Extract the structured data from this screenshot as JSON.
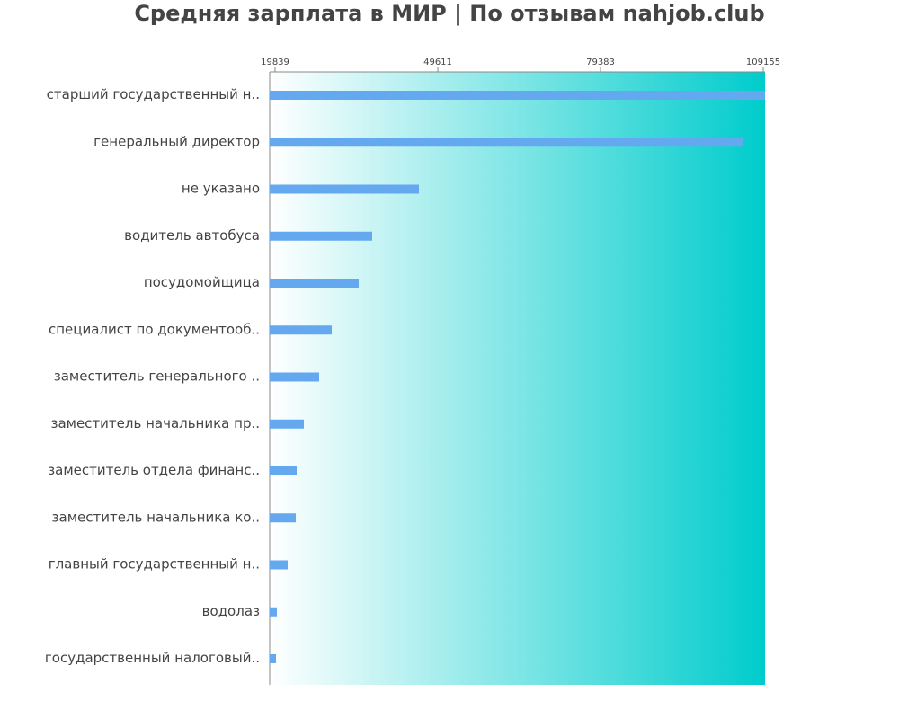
{
  "chart_data": {
    "type": "bar",
    "orientation": "horizontal",
    "title": "Средняя зарплата в МИР | По отзывам nahjob.club",
    "xlabel": "",
    "ylabel": "",
    "xlim": [
      19839,
      109155
    ],
    "xticks": [
      19839,
      49611,
      79383,
      109155
    ],
    "categories": [
      "старший государственный н..",
      "генеральный директор",
      "не указано",
      "водитель автобуса",
      "посудомойщица",
      "специалист по документооб..",
      "заместитель генерального ..",
      "заместитель начальника пр..",
      "заместитель отдела финанс..",
      "заместитель начальника ко..",
      "главный государственный н..",
      "водолаз",
      "государственный налоговый.."
    ],
    "values": [
      109155,
      105379,
      46159,
      37605,
      35138,
      30203,
      27900,
      25103,
      23787,
      23623,
      22142,
      20168,
      20003
    ],
    "colors": {
      "bar": "#64a8f0",
      "gradient_start": "#ffffff",
      "gradient_end": "#00cccc",
      "text": "#444444"
    }
  }
}
